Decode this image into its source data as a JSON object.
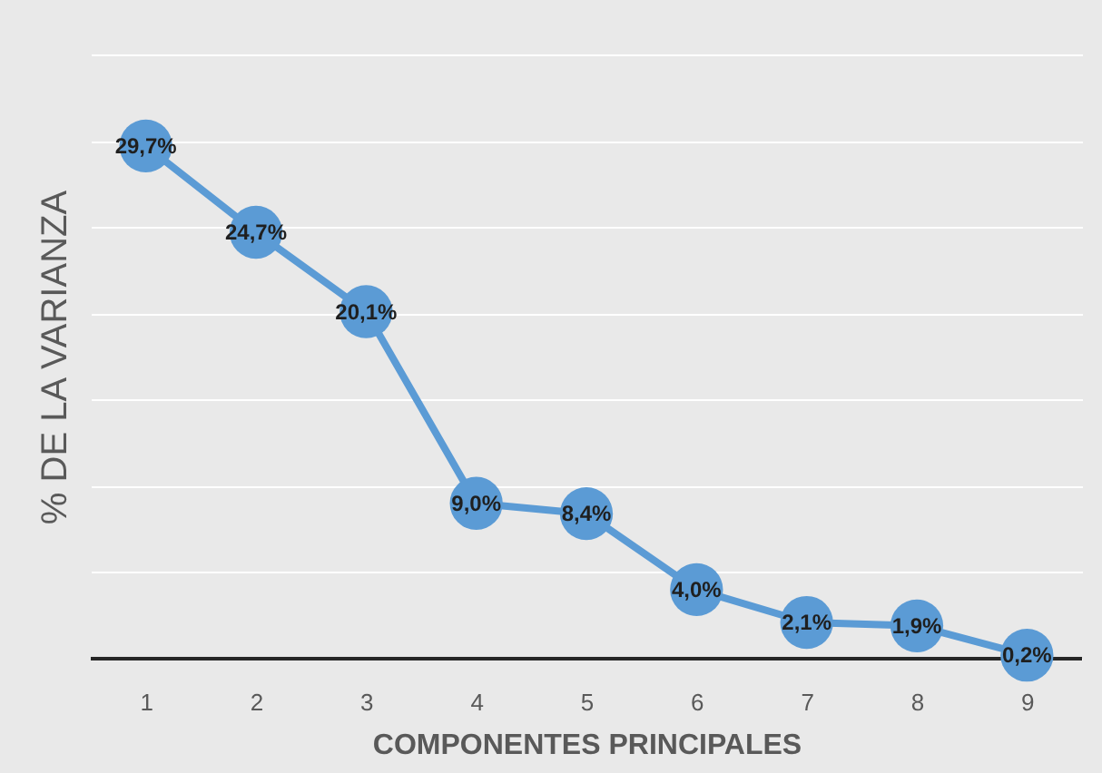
{
  "chart_data": {
    "type": "line",
    "xlabel": "COMPONENTES PRINCIPALES",
    "ylabel": "% DE LA VARIANZA",
    "categories": [
      "1",
      "2",
      "3",
      "4",
      "5",
      "6",
      "7",
      "8",
      "9"
    ],
    "series": [
      {
        "color": "#5b9bd5",
        "values": [
          29.7,
          24.7,
          20.1,
          9.0,
          8.4,
          4.0,
          2.1,
          1.9,
          0.2
        ],
        "value_labels": [
          "29,7%",
          "24,7%",
          "20,1%",
          "9,0%",
          "8,4%",
          "4,0%",
          "2,1%",
          "1,9%",
          "0,2%"
        ]
      }
    ],
    "ylim": [
      0,
      35
    ],
    "yticks": [
      {
        "value": 0,
        "label": null
      },
      {
        "value": 5,
        "label": null
      },
      {
        "value": 10,
        "label": null
      },
      {
        "value": 15,
        "label": null
      },
      {
        "value": 20,
        "label": null
      },
      {
        "value": 25,
        "label": null
      },
      {
        "value": 30,
        "label": null
      },
      {
        "value": 35,
        "label": null
      }
    ],
    "tick_labels": "x",
    "grid": "y",
    "marker": "circle",
    "line_style": "solid",
    "legend": false
  }
}
